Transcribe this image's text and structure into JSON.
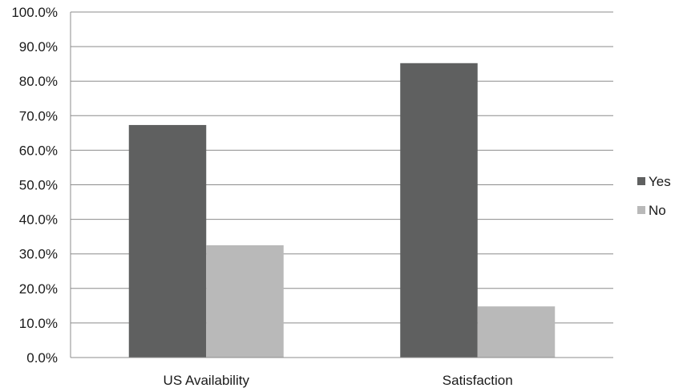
{
  "chart_data": {
    "type": "bar",
    "title": "",
    "xlabel": "",
    "ylabel": "",
    "categories": [
      "US Availability",
      "Satisfaction"
    ],
    "series": [
      {
        "name": "Yes",
        "values": [
          67.3,
          85.2
        ],
        "color": "#5f6060"
      },
      {
        "name": "No",
        "values": [
          32.5,
          14.8
        ],
        "color": "#b9b9b9"
      }
    ],
    "ylim": [
      0,
      100
    ],
    "yticks": [
      0,
      10,
      20,
      30,
      40,
      50,
      60,
      70,
      80,
      90,
      100
    ],
    "ytick_labels": [
      "0.0%",
      "10.0%",
      "20.0%",
      "30.0%",
      "40.0%",
      "50.0%",
      "60.0%",
      "70.0%",
      "80.0%",
      "90.0%",
      "100.0%"
    ],
    "grid": true,
    "legend_position": "right"
  }
}
